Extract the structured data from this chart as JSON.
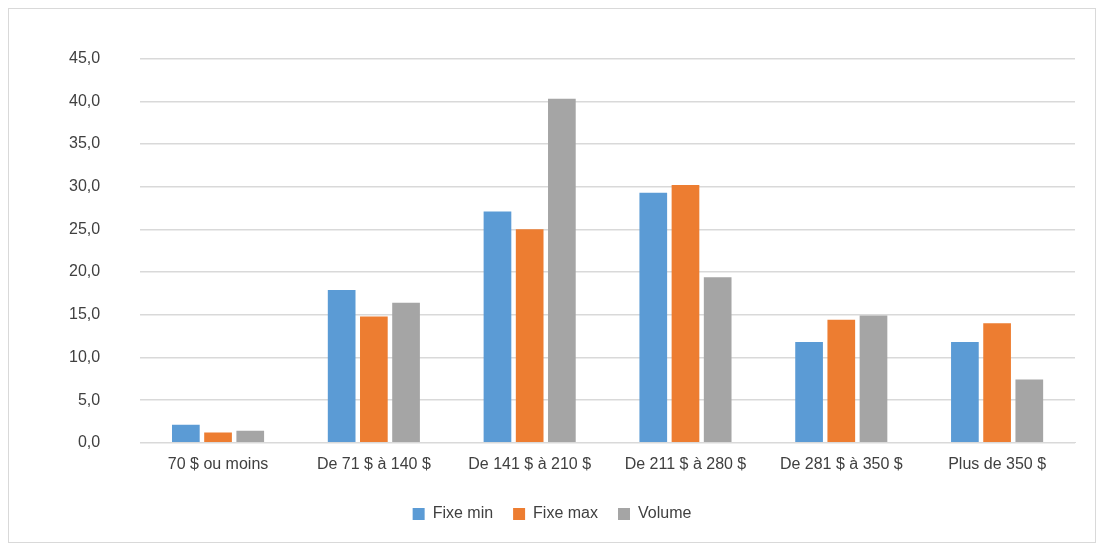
{
  "chart_data": {
    "type": "bar",
    "categories": [
      "70 $ ou moins",
      "De 71 $ à 140 $",
      "De 141 $ à 210 $",
      "De 211 $ à 280 $",
      "De 281 $ à 350 $",
      "Plus de 350 $"
    ],
    "series": [
      {
        "name": "Fixe min",
        "color": "#5b9bd5",
        "values": [
          2.1,
          17.9,
          27.1,
          29.3,
          11.8,
          11.8
        ]
      },
      {
        "name": "Fixe max",
        "color": "#ed7d31",
        "values": [
          1.2,
          14.8,
          25.0,
          30.2,
          14.4,
          14.0
        ]
      },
      {
        "name": "Volume",
        "color": "#a5a5a5",
        "values": [
          1.4,
          16.4,
          40.3,
          19.4,
          14.9,
          7.4
        ]
      }
    ],
    "ylim": [
      0,
      45
    ],
    "yticks": [
      {
        "value": 0,
        "label": "0,0"
      },
      {
        "value": 5,
        "label": "5,0"
      },
      {
        "value": 10,
        "label": "10,0"
      },
      {
        "value": 15,
        "label": "15,0"
      },
      {
        "value": 20,
        "label": "20,0"
      },
      {
        "value": 25,
        "label": "25,0"
      },
      {
        "value": 30,
        "label": "30,0"
      },
      {
        "value": 35,
        "label": "35,0"
      },
      {
        "value": 40,
        "label": "40,0"
      },
      {
        "value": 45,
        "label": "45,0"
      }
    ],
    "grid": "y",
    "legend": "bottom"
  }
}
